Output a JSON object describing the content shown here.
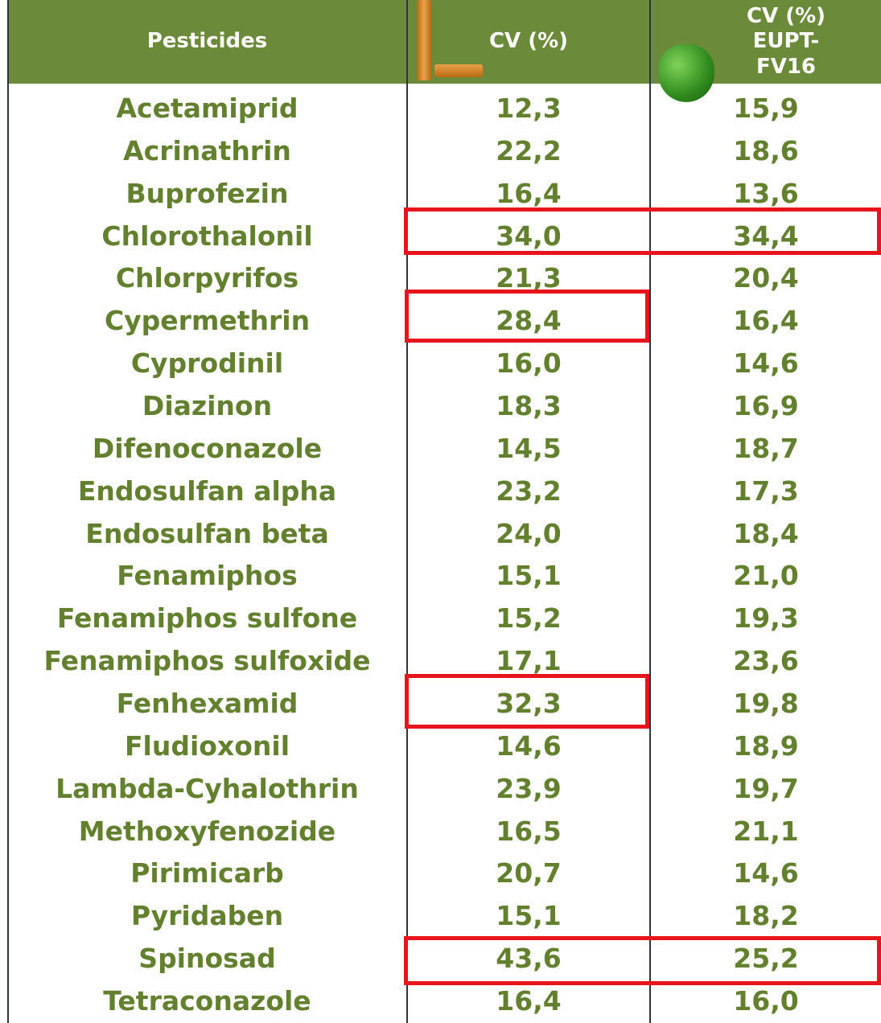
{
  "table": {
    "header": [
      "Pesticides",
      "CV (%)",
      "CV (%) EUPT-FV16"
    ],
    "rows": [
      [
        "Acetamiprid",
        "12,3",
        "15,9"
      ],
      [
        "Acrinathrin",
        "22,2",
        "18,6"
      ],
      [
        "Buprofezin",
        "16,4",
        "13,6"
      ],
      [
        "Chlorothalonil",
        "34,0",
        "34,4"
      ],
      [
        "Chlorpyrifos",
        "21,3",
        "20,4"
      ],
      [
        "Cypermethrin",
        "28,4",
        "16,4"
      ],
      [
        "Cyprodinil",
        "16,0",
        "14,6"
      ],
      [
        "Diazinon",
        "18,3",
        "16,9"
      ],
      [
        "Difenoconazole",
        "14,5",
        "18,7"
      ],
      [
        "Endosulfan alpha",
        "23,2",
        "17,3"
      ],
      [
        "Endosulfan beta",
        "24,0",
        "18,4"
      ],
      [
        "Fenamiphos",
        "15,1",
        "21,0"
      ],
      [
        "Fenamiphos sulfone",
        "15,2",
        "19,3"
      ],
      [
        "Fenamiphos sulfoxide",
        "17,1",
        "23,6"
      ],
      [
        "Fenhexamid",
        "32,3",
        "19,8"
      ],
      [
        "Fludioxonil",
        "14,6",
        "18,9"
      ],
      [
        "Lambda-Cyhalothrin",
        "23,9",
        "19,7"
      ],
      [
        "Methoxyfenozide",
        "16,5",
        "21,1"
      ],
      [
        "Pirimicarb",
        "20,7",
        "14,6"
      ],
      [
        "Pyridaben",
        "15,1",
        "18,2"
      ],
      [
        "Spinosad",
        "43,6",
        "25,2"
      ],
      [
        "Tetraconazole",
        "16,4",
        "16,0"
      ]
    ]
  }
}
